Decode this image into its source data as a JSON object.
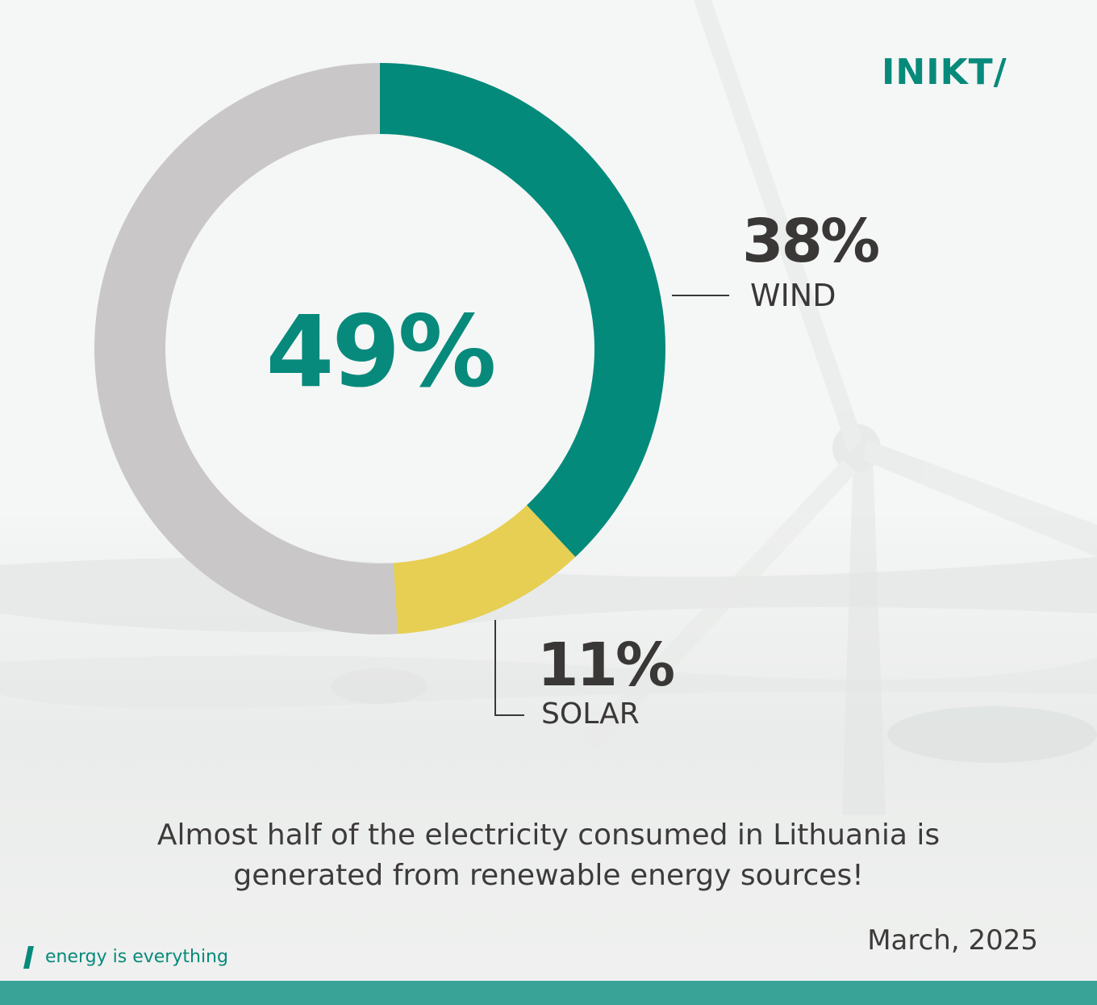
{
  "brand": {
    "logo_text": "INIKT/",
    "tagline": "energy is everything"
  },
  "colors": {
    "accent": "#078a7b",
    "wind": "#038a7b",
    "solar": "#e6cf52",
    "other": "#c9c7c8"
  },
  "chart_data": {
    "type": "pie",
    "style": "donut",
    "center_label": "49%",
    "slices": [
      {
        "name": "WIND",
        "value": 38,
        "label": "38%",
        "color": "#038a7b"
      },
      {
        "name": "SOLAR",
        "value": 11,
        "label": "11%",
        "color": "#e6cf52"
      },
      {
        "name": "",
        "value": 51,
        "label": "",
        "color": "#c9c7c8"
      }
    ]
  },
  "caption": {
    "line1": "Almost half of the electricity consumed in Lithuania is",
    "line2": "generated from renewable energy sources!"
  },
  "date": "March, 2025"
}
